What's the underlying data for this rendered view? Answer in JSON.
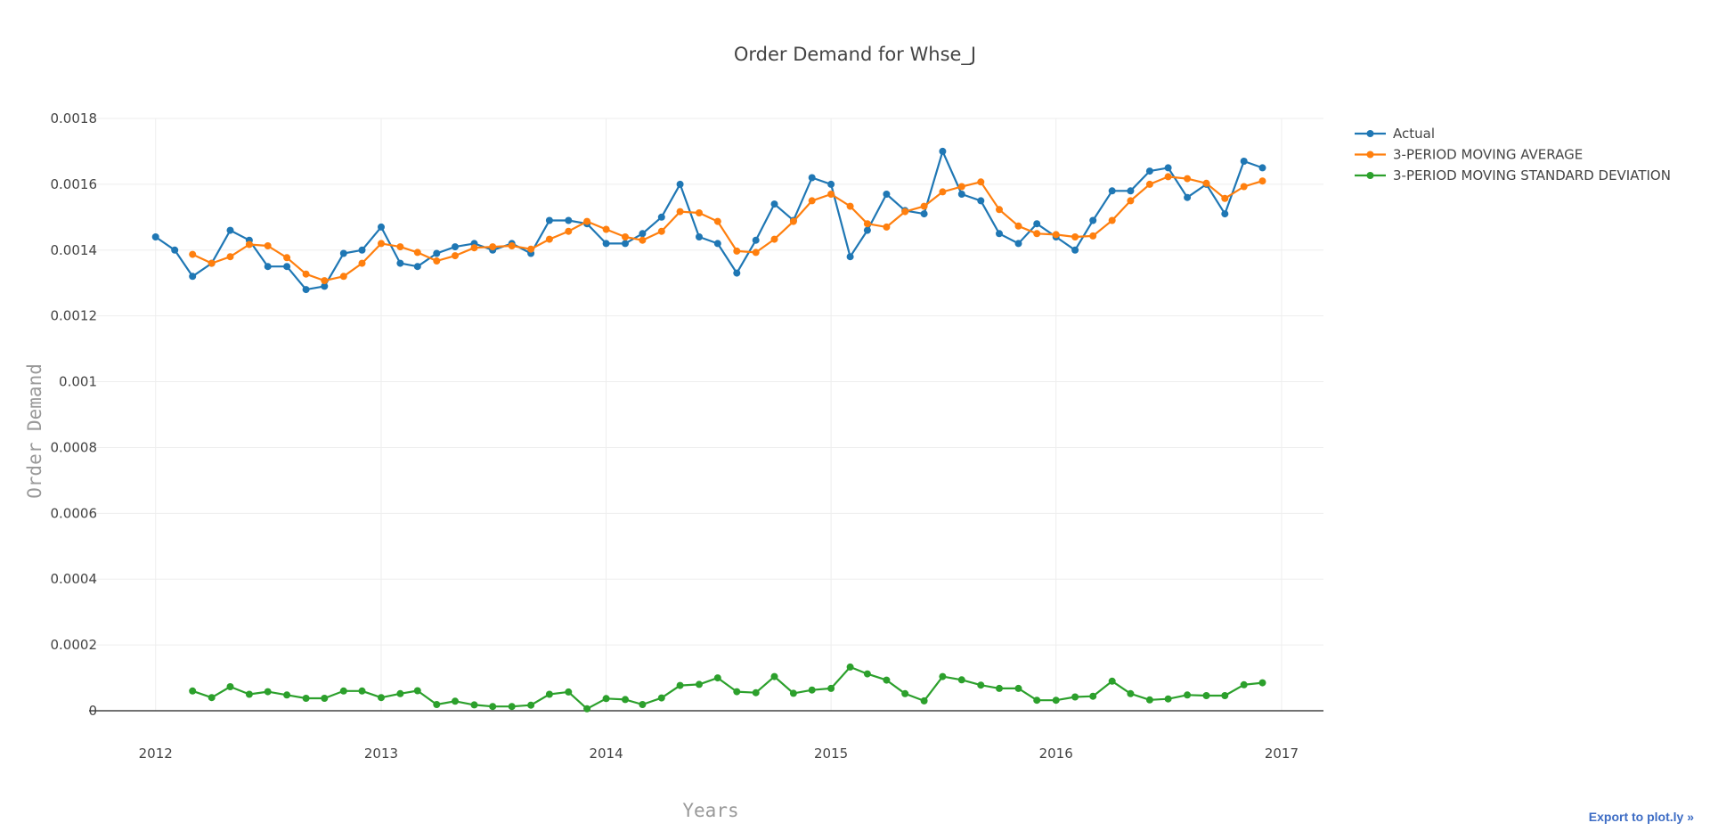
{
  "export_link": "Export to plot.ly »",
  "chart_data": {
    "type": "line",
    "title": "Order Demand for Whse_J",
    "xlabel": "Years",
    "ylabel": "Order Demand",
    "x_ticks": [
      "2012",
      "2013",
      "2014",
      "2015",
      "2016",
      "2017"
    ],
    "y_ticks": [
      "0",
      "0.0002",
      "0.0004",
      "0.0006",
      "0.0008",
      "0.001",
      "0.0012",
      "0.0014",
      "0.0016",
      "0.0018"
    ],
    "xlim": [
      "2011-09-15",
      "2017-03-10"
    ],
    "ylim": [
      0,
      0.0018
    ],
    "grid": true,
    "legend_position": "top-right",
    "series": [
      {
        "name": "Actual",
        "color": "#1f77b4",
        "x": [
          "2012-01-01",
          "2012-02-01",
          "2012-03-01",
          "2012-04-01",
          "2012-05-01",
          "2012-06-01",
          "2012-07-01",
          "2012-08-01",
          "2012-09-01",
          "2012-10-01",
          "2012-11-01",
          "2012-12-01",
          "2013-01-01",
          "2013-02-01",
          "2013-03-01",
          "2013-04-01",
          "2013-05-01",
          "2013-06-01",
          "2013-07-01",
          "2013-08-01",
          "2013-09-01",
          "2013-10-01",
          "2013-11-01",
          "2013-12-01",
          "2014-01-01",
          "2014-02-01",
          "2014-03-01",
          "2014-04-01",
          "2014-05-01",
          "2014-06-01",
          "2014-07-01",
          "2014-08-01",
          "2014-09-01",
          "2014-10-01",
          "2014-11-01",
          "2014-12-01",
          "2015-01-01",
          "2015-02-01",
          "2015-03-01",
          "2015-04-01",
          "2015-05-01",
          "2015-06-01",
          "2015-07-01",
          "2015-08-01",
          "2015-09-01",
          "2015-10-01",
          "2015-11-01",
          "2015-12-01",
          "2016-01-01",
          "2016-02-01",
          "2016-03-01",
          "2016-04-01",
          "2016-05-01",
          "2016-06-01",
          "2016-07-01",
          "2016-08-01",
          "2016-09-01",
          "2016-10-01",
          "2016-11-01",
          "2016-12-01"
        ],
        "values": [
          0.00144,
          0.0014,
          0.00132,
          0.00136,
          0.00146,
          0.00143,
          0.00135,
          0.00135,
          0.00128,
          0.00129,
          0.00139,
          0.0014,
          0.00147,
          0.00136,
          0.00135,
          0.00139,
          0.00141,
          0.00142,
          0.0014,
          0.00142,
          0.00139,
          0.00149,
          0.00149,
          0.00148,
          0.00142,
          0.00142,
          0.00145,
          0.0015,
          0.0016,
          0.00144,
          0.00142,
          0.00133,
          0.00143,
          0.00154,
          0.00149,
          0.00162,
          0.0016,
          0.00138,
          0.00146,
          0.00157,
          0.00152,
          0.00151,
          0.0017,
          0.00157,
          0.00155,
          0.00145,
          0.00142,
          0.00148,
          0.00144,
          0.0014,
          0.00149,
          0.00158,
          0.00158,
          0.00164,
          0.00165,
          0.00156,
          0.0016,
          0.00151,
          0.00167,
          0.00165
        ]
      },
      {
        "name": "3-PERIOD MOVING AVERAGE",
        "color": "#ff7f0e",
        "x": [
          "2012-03-01",
          "2012-04-01",
          "2012-05-01",
          "2012-06-01",
          "2012-07-01",
          "2012-08-01",
          "2012-09-01",
          "2012-10-01",
          "2012-11-01",
          "2012-12-01",
          "2013-01-01",
          "2013-02-01",
          "2013-03-01",
          "2013-04-01",
          "2013-05-01",
          "2013-06-01",
          "2013-07-01",
          "2013-08-01",
          "2013-09-01",
          "2013-10-01",
          "2013-11-01",
          "2013-12-01",
          "2014-01-01",
          "2014-02-01",
          "2014-03-01",
          "2014-04-01",
          "2014-05-01",
          "2014-06-01",
          "2014-07-01",
          "2014-08-01",
          "2014-09-01",
          "2014-10-01",
          "2014-11-01",
          "2014-12-01",
          "2015-01-01",
          "2015-02-01",
          "2015-03-01",
          "2015-04-01",
          "2015-05-01",
          "2015-06-01",
          "2015-07-01",
          "2015-08-01",
          "2015-09-01",
          "2015-10-01",
          "2015-11-01",
          "2015-12-01",
          "2016-01-01",
          "2016-02-01",
          "2016-03-01",
          "2016-04-01",
          "2016-05-01",
          "2016-06-01",
          "2016-07-01",
          "2016-08-01",
          "2016-09-01",
          "2016-10-01",
          "2016-11-01",
          "2016-12-01"
        ],
        "values": [
          0.001387,
          0.00136,
          0.00138,
          0.001417,
          0.001413,
          0.001377,
          0.001327,
          0.001307,
          0.00132,
          0.00136,
          0.00142,
          0.00141,
          0.001393,
          0.001367,
          0.001383,
          0.001407,
          0.00141,
          0.001413,
          0.001403,
          0.001433,
          0.001457,
          0.001487,
          0.001463,
          0.00144,
          0.00143,
          0.001457,
          0.001517,
          0.001513,
          0.001487,
          0.001397,
          0.001393,
          0.001433,
          0.001487,
          0.00155,
          0.00157,
          0.001533,
          0.00148,
          0.00147,
          0.001517,
          0.001533,
          0.001577,
          0.001593,
          0.001607,
          0.001523,
          0.001473,
          0.00145,
          0.001447,
          0.00144,
          0.001443,
          0.00149,
          0.00155,
          0.0016,
          0.001623,
          0.001617,
          0.001603,
          0.001557,
          0.001593,
          0.00161
        ]
      },
      {
        "name": "3-PERIOD MOVING STANDARD DEVIATION",
        "color": "#2ca02c",
        "x": [
          "2012-03-01",
          "2012-04-01",
          "2012-05-01",
          "2012-06-01",
          "2012-07-01",
          "2012-08-01",
          "2012-09-01",
          "2012-10-01",
          "2012-11-01",
          "2012-12-01",
          "2013-01-01",
          "2013-02-01",
          "2013-03-01",
          "2013-04-01",
          "2013-05-01",
          "2013-06-01",
          "2013-07-01",
          "2013-08-01",
          "2013-09-01",
          "2013-10-01",
          "2013-11-01",
          "2013-12-01",
          "2014-01-01",
          "2014-02-01",
          "2014-03-01",
          "2014-04-01",
          "2014-05-01",
          "2014-06-01",
          "2014-07-01",
          "2014-08-01",
          "2014-09-01",
          "2014-10-01",
          "2014-11-01",
          "2014-12-01",
          "2015-01-01",
          "2015-02-01",
          "2015-03-01",
          "2015-04-01",
          "2015-05-01",
          "2015-06-01",
          "2015-07-01",
          "2015-08-01",
          "2015-09-01",
          "2015-10-01",
          "2015-11-01",
          "2015-12-01",
          "2016-01-01",
          "2016-02-01",
          "2016-03-01",
          "2016-04-01",
          "2016-05-01",
          "2016-06-01",
          "2016-07-01",
          "2016-08-01",
          "2016-09-01",
          "2016-10-01",
          "2016-11-01",
          "2016-12-01"
        ],
        "values": [
          6e-05,
          4e-05,
          7.3e-05,
          5e-05,
          5.8e-05,
          4.8e-05,
          3.8e-05,
          3.8e-05,
          6e-05,
          6e-05,
          4e-05,
          5.2e-05,
          6.1e-05,
          1.9e-05,
          2.9e-05,
          1.8e-05,
          1.3e-05,
          1.3e-05,
          1.7e-05,
          5e-05,
          5.7e-05,
          6e-06,
          3.7e-05,
          3.4e-05,
          1.9e-05,
          3.9e-05,
          7.7e-05,
          8e-05,
          0.0001,
          5.8e-05,
          5.5e-05,
          0.000104,
          5.3e-05,
          6.3e-05,
          6.8e-05,
          0.000133,
          0.000112,
          9.3e-05,
          5.2e-05,
          3e-05,
          0.000104,
          9.4e-05,
          7.8e-05,
          6.8e-05,
          6.8e-05,
          3.2e-05,
          3.2e-05,
          4.2e-05,
          4.4e-05,
          9e-05,
          5.2e-05,
          3.3e-05,
          3.6e-05,
          4.8e-05,
          4.6e-05,
          4.6e-05,
          7.9e-05,
          8.5e-05
        ]
      }
    ]
  }
}
